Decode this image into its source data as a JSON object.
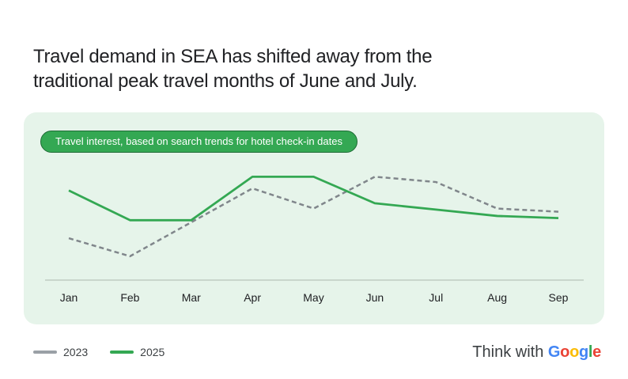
{
  "headline": {
    "line1": "Travel demand in SEA has shifted away from the",
    "line2": "traditional peak travel months of June and July."
  },
  "pill_label": "Travel interest, based on search trends for hotel check-in dates",
  "brand": {
    "prefix": "Think with",
    "word": "Google",
    "letters": [
      {
        "ch": "G",
        "color": "#4285F4"
      },
      {
        "ch": "o",
        "color": "#EA4335"
      },
      {
        "ch": "o",
        "color": "#FBBC05"
      },
      {
        "ch": "g",
        "color": "#4285F4"
      },
      {
        "ch": "l",
        "color": "#34A853"
      },
      {
        "ch": "e",
        "color": "#EA4335"
      }
    ]
  },
  "chart_data": {
    "type": "line",
    "categories": [
      "Jan",
      "Feb",
      "Mar",
      "Apr",
      "May",
      "Jun",
      "Jul",
      "Aug",
      "Sep"
    ],
    "ylim": [
      0,
      100
    ],
    "grid": false,
    "legend_position": "bottom-left",
    "series": [
      {
        "name": "2023",
        "color": "#80868b",
        "legend_color": "#9aa0a6",
        "dashed": true,
        "values": [
          38,
          21,
          53,
          85,
          66,
          96,
          91,
          66,
          63
        ]
      },
      {
        "name": "2025",
        "color": "#34a853",
        "legend_color": "#34a853",
        "dashed": false,
        "values": [
          83,
          55,
          55,
          96,
          96,
          71,
          65,
          59,
          57
        ]
      }
    ]
  }
}
